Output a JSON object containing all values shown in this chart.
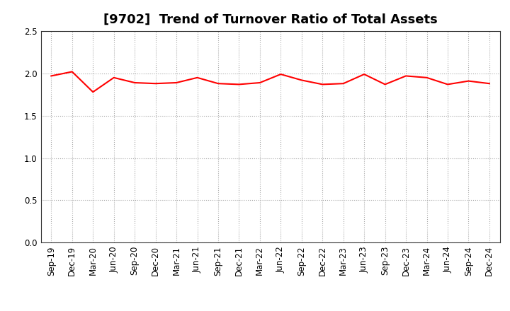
{
  "title": "[9702]  Trend of Turnover Ratio of Total Assets",
  "x_labels": [
    "Sep-19",
    "Dec-19",
    "Mar-20",
    "Jun-20",
    "Sep-20",
    "Dec-20",
    "Mar-21",
    "Jun-21",
    "Sep-21",
    "Dec-21",
    "Mar-22",
    "Jun-22",
    "Sep-22",
    "Dec-22",
    "Mar-23",
    "Jun-23",
    "Sep-23",
    "Dec-23",
    "Mar-24",
    "Jun-24",
    "Sep-24",
    "Dec-24"
  ],
  "y_values": [
    1.97,
    2.02,
    1.78,
    1.95,
    1.89,
    1.88,
    1.89,
    1.95,
    1.88,
    1.87,
    1.89,
    1.99,
    1.92,
    1.87,
    1.88,
    1.99,
    1.87,
    1.97,
    1.95,
    1.87,
    1.91,
    1.88
  ],
  "line_color": "#FF0000",
  "line_width": 1.5,
  "ylim": [
    0.0,
    2.5
  ],
  "yticks": [
    0.0,
    0.5,
    1.0,
    1.5,
    2.0,
    2.5
  ],
  "background_color": "#ffffff",
  "grid_color": "#aaaaaa",
  "title_fontsize": 13,
  "tick_fontsize": 8.5,
  "spine_color": "#333333"
}
